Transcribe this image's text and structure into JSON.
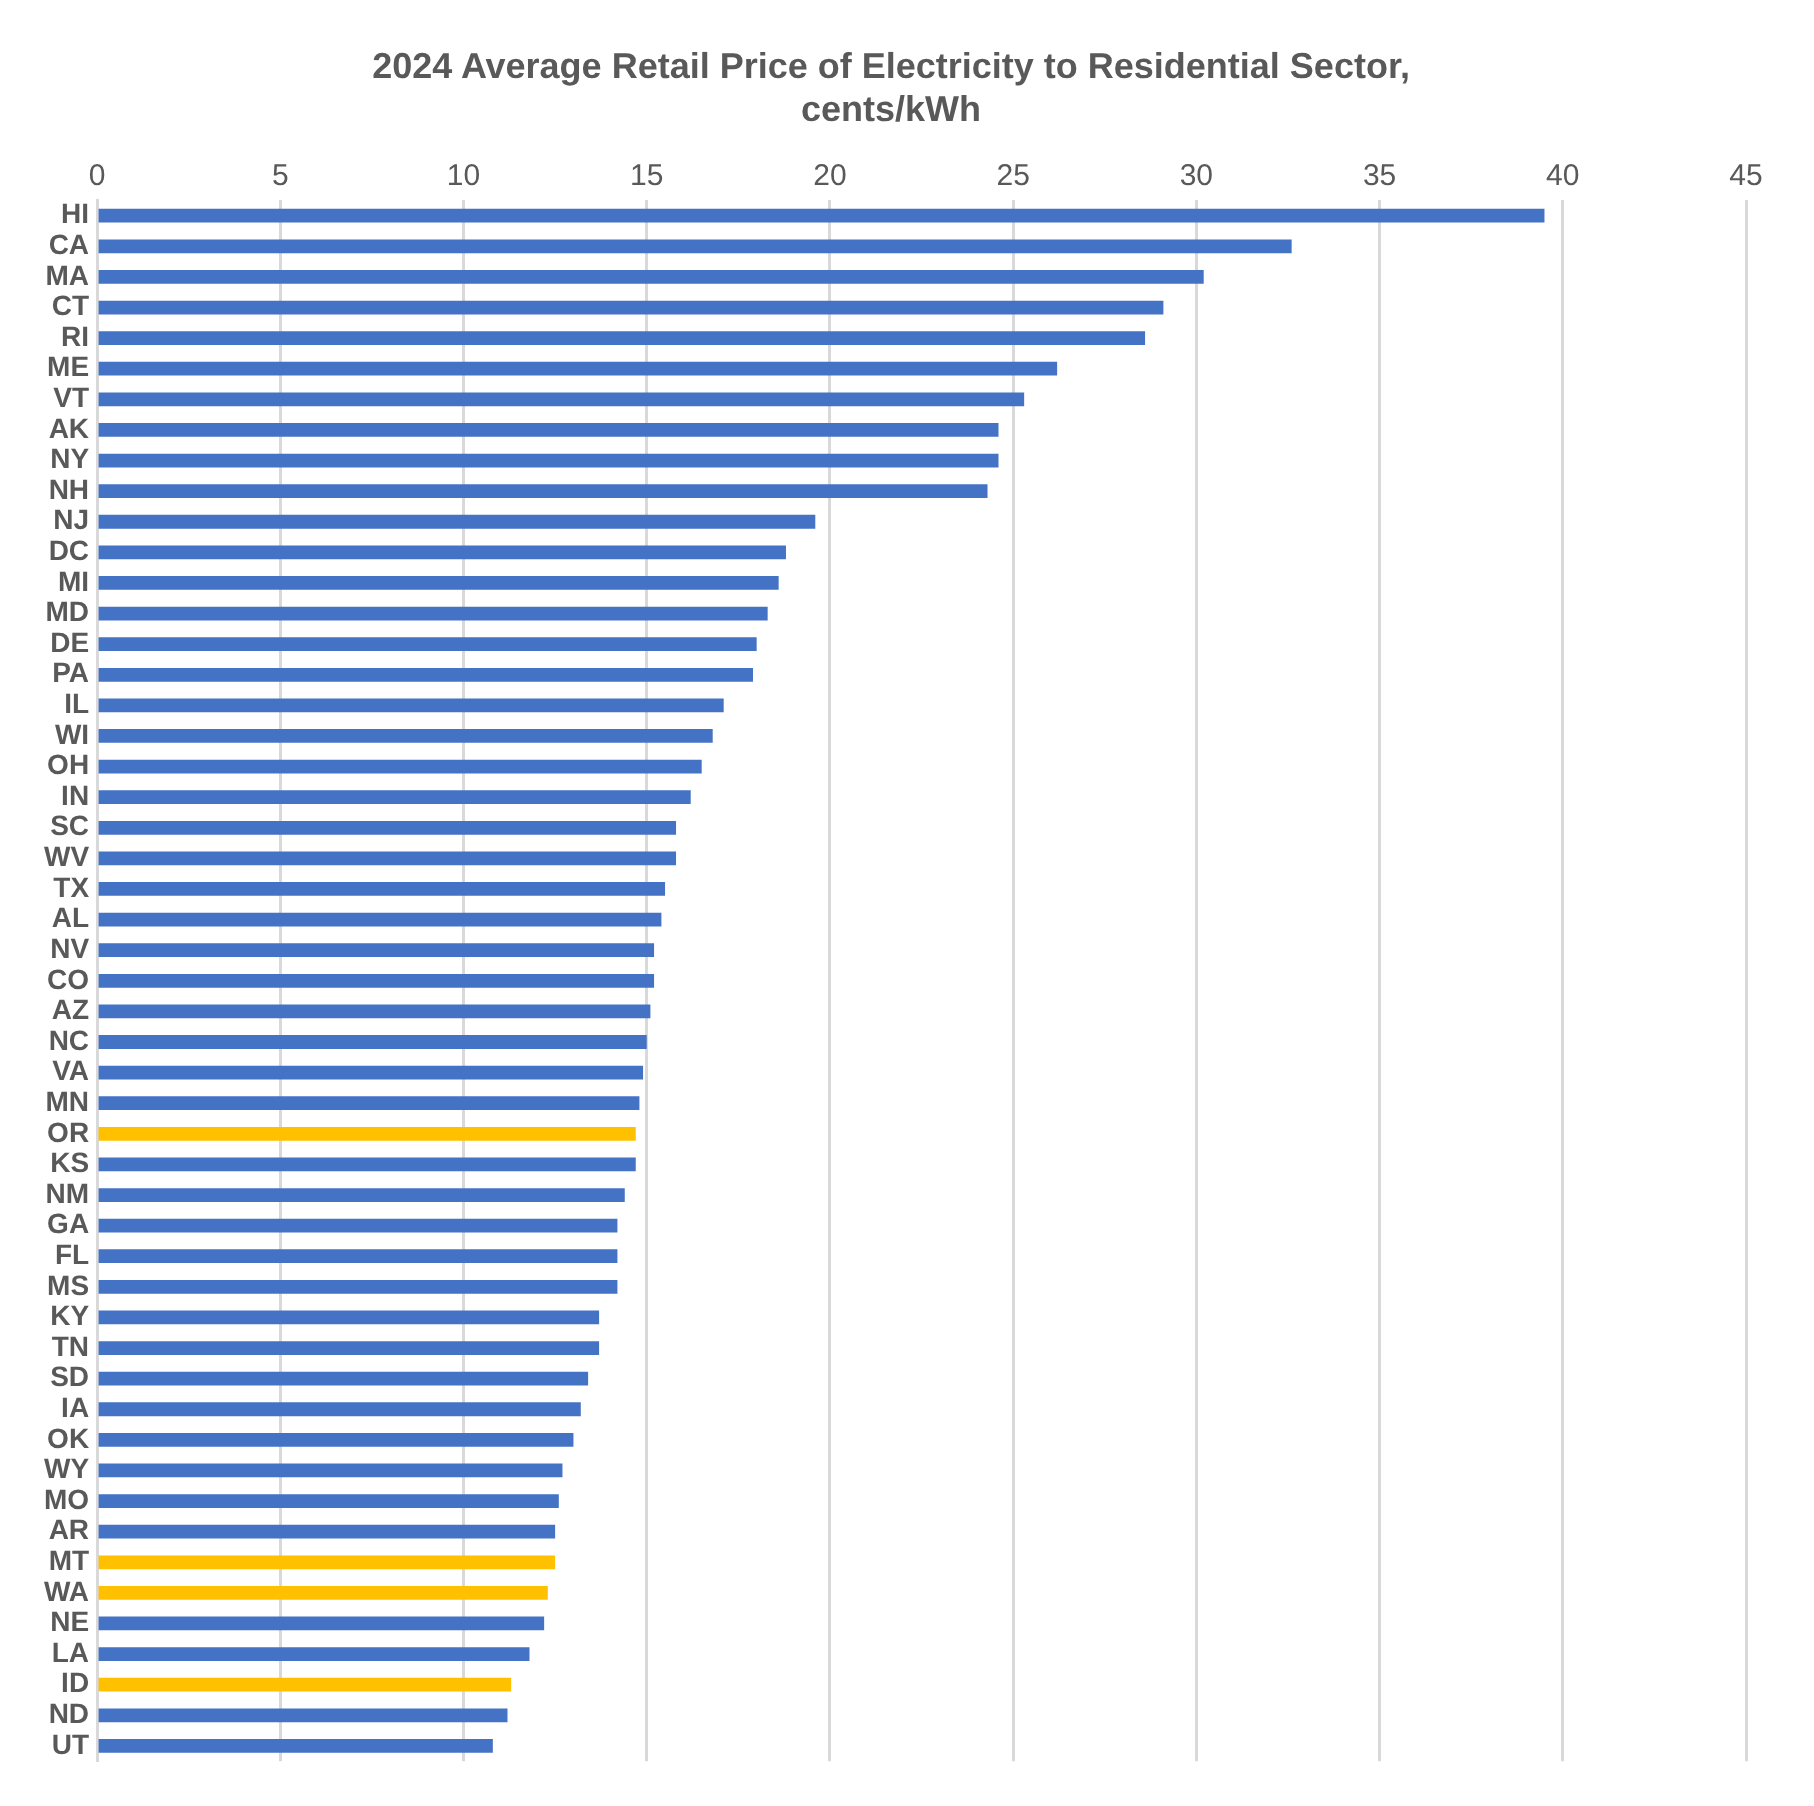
{
  "chart_data": {
    "type": "bar",
    "orientation": "horizontal",
    "title": "2024 Average Retail Price of Electricity to Residential Sector, cents/kWh",
    "categories": [
      "HI",
      "CA",
      "MA",
      "CT",
      "RI",
      "ME",
      "VT",
      "AK",
      "NY",
      "NH",
      "NJ",
      "DC",
      "MI",
      "MD",
      "DE",
      "PA",
      "IL",
      "WI",
      "OH",
      "IN",
      "SC",
      "WV",
      "TX",
      "AL",
      "NV",
      "CO",
      "AZ",
      "NC",
      "VA",
      "MN",
      "OR",
      "KS",
      "NM",
      "GA",
      "FL",
      "MS",
      "KY",
      "TN",
      "SD",
      "IA",
      "OK",
      "WY",
      "MO",
      "AR",
      "MT",
      "WA",
      "NE",
      "LA",
      "ID",
      "ND",
      "UT"
    ],
    "values": [
      39.5,
      32.6,
      30.2,
      29.1,
      28.6,
      26.2,
      25.3,
      24.6,
      24.6,
      24.3,
      19.6,
      18.8,
      18.6,
      18.3,
      18.0,
      17.9,
      17.1,
      16.8,
      16.5,
      16.2,
      15.8,
      15.8,
      15.5,
      15.4,
      15.2,
      15.2,
      15.1,
      15.0,
      14.9,
      14.8,
      14.7,
      14.7,
      14.4,
      14.2,
      14.2,
      14.2,
      13.7,
      13.7,
      13.4,
      13.2,
      13.0,
      12.7,
      12.6,
      12.5,
      12.5,
      12.3,
      12.2,
      11.8,
      11.3,
      11.2,
      10.8
    ],
    "colors": [
      "#4472c4",
      "#4472c4",
      "#4472c4",
      "#4472c4",
      "#4472c4",
      "#4472c4",
      "#4472c4",
      "#4472c4",
      "#4472c4",
      "#4472c4",
      "#4472c4",
      "#4472c4",
      "#4472c4",
      "#4472c4",
      "#4472c4",
      "#4472c4",
      "#4472c4",
      "#4472c4",
      "#4472c4",
      "#4472c4",
      "#4472c4",
      "#4472c4",
      "#4472c4",
      "#4472c4",
      "#4472c4",
      "#4472c4",
      "#4472c4",
      "#4472c4",
      "#4472c4",
      "#4472c4",
      "#ffc000",
      "#4472c4",
      "#4472c4",
      "#4472c4",
      "#4472c4",
      "#4472c4",
      "#4472c4",
      "#4472c4",
      "#4472c4",
      "#4472c4",
      "#4472c4",
      "#4472c4",
      "#4472c4",
      "#4472c4",
      "#ffc000",
      "#ffc000",
      "#4472c4",
      "#4472c4",
      "#ffc000",
      "#4472c4",
      "#4472c4"
    ],
    "xlim": [
      0,
      45
    ],
    "xticks": [
      0,
      5,
      10,
      15,
      20,
      25,
      30,
      35,
      40,
      45
    ],
    "grid": "x",
    "legend": false
  }
}
